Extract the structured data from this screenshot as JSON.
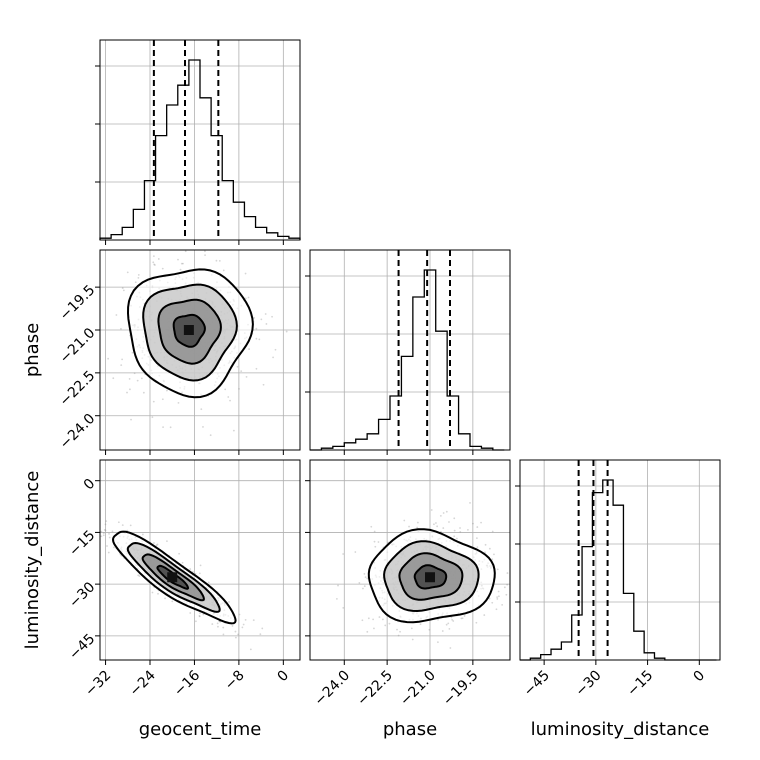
{
  "chart_data": {
    "type": "corner",
    "parameters": [
      "geocent_time",
      "phase",
      "luminosity_distance"
    ],
    "axes": {
      "geocent_time": {
        "label": "geocent_time",
        "range": [
          -33,
          3
        ],
        "ticks": [
          -32,
          -24,
          -16,
          -8,
          0
        ],
        "tick_labels": [
          "−32",
          "−24",
          "−16",
          "−8",
          "0"
        ]
      },
      "phase": {
        "label": "phase",
        "range": [
          -25.2,
          -18.2
        ],
        "ticks": [
          -24.0,
          -22.5,
          -21.0,
          -19.5
        ],
        "tick_labels": [
          "−24.0",
          "−22.5",
          "−21.0",
          "−19.5"
        ]
      },
      "luminosity_distance": {
        "label": "luminosity_distance",
        "range": [
          -52,
          6
        ],
        "ticks": [
          -45,
          -30,
          -15,
          0
        ],
        "tick_labels": [
          "−45",
          "−30",
          "−15",
          "0"
        ]
      }
    },
    "histograms": [
      {
        "parameter": "geocent_time",
        "bins": [
          -33,
          -31,
          -29,
          -27,
          -25,
          -23,
          -21,
          -19,
          -17,
          -15,
          -13,
          -11,
          -9,
          -7,
          -5,
          -3,
          -1,
          1,
          3
        ],
        "counts": [
          1,
          3,
          7,
          17,
          33,
          58,
          75,
          86,
          100,
          79,
          58,
          33,
          21,
          13,
          7,
          4,
          2,
          1
        ],
        "quantiles": [
          -23.3,
          -17.7,
          -11.7
        ]
      },
      {
        "parameter": "phase",
        "bins": [
          -25.2,
          -24.8,
          -24.4,
          -24.0,
          -23.6,
          -23.2,
          -22.8,
          -22.4,
          -22.0,
          -21.6,
          -21.2,
          -20.8,
          -20.4,
          -20.0,
          -19.6,
          -19.2,
          -18.8,
          -18.4
        ],
        "counts": [
          0,
          1,
          2,
          4,
          6,
          9,
          17,
          30,
          52,
          85,
          100,
          66,
          30,
          9,
          2,
          1,
          0
        ],
        "quantiles": [
          -22.1,
          -21.1,
          -20.3
        ]
      },
      {
        "parameter": "luminosity_distance",
        "bins": [
          -52,
          -49,
          -46,
          -43,
          -40,
          -37,
          -34,
          -31,
          -28,
          -25,
          -22,
          -19,
          -16,
          -13,
          -10,
          -7,
          -4,
          -1,
          2,
          5
        ],
        "counts": [
          0,
          1,
          3,
          6,
          10,
          25,
          63,
          93,
          100,
          86,
          37,
          16,
          4,
          1,
          0,
          0,
          0,
          0,
          0
        ],
        "quantiles": [
          -35.0,
          -30.7,
          -26.6
        ]
      }
    ],
    "contours": [
      {
        "x": "geocent_time",
        "y": "phase",
        "center": [
          -17,
          -21.0
        ],
        "sigma": [
          5.5,
          1.1
        ],
        "rho": 0
      },
      {
        "x": "geocent_time",
        "y": "luminosity_distance",
        "center": [
          -20,
          -28
        ],
        "sigma": [
          5.5,
          6.5
        ],
        "rho": -0.9
      },
      {
        "x": "phase",
        "y": "luminosity_distance",
        "center": [
          -21.0,
          -28
        ],
        "sigma": [
          1.1,
          6.5
        ],
        "rho": 0
      }
    ],
    "xlabels": [
      "geocent_time",
      "phase",
      "luminosity_distance"
    ],
    "ylabels": [
      "",
      "phase",
      "luminosity_distance"
    ]
  }
}
